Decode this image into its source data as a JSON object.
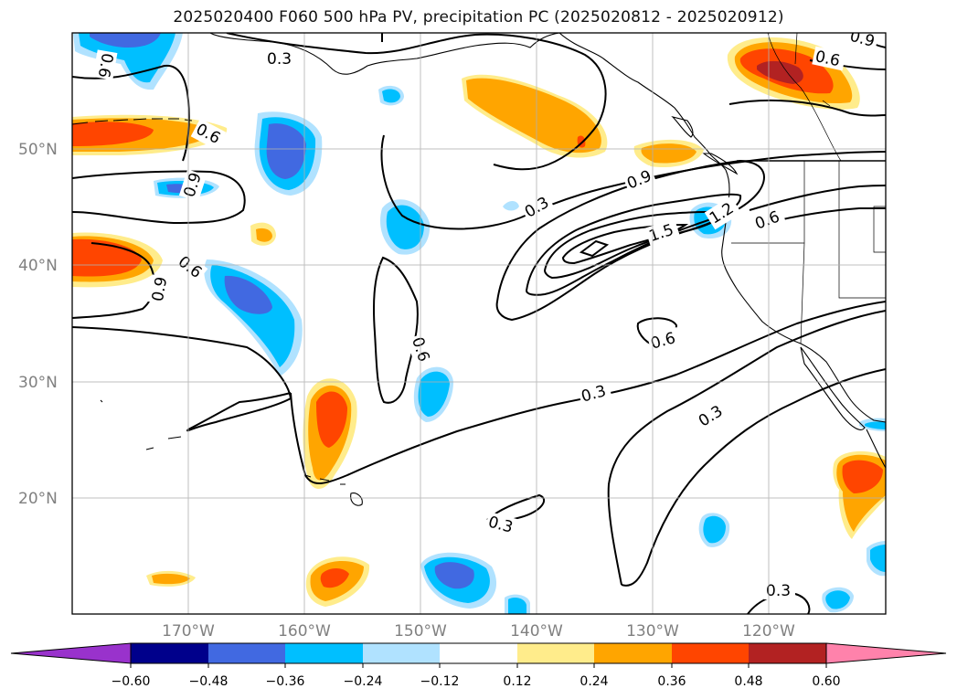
{
  "title": "2025020400 F060 500 hPa PV, precipitation PC (2025020812 - 2025020912)",
  "map": {
    "lat_labels": [
      "50°N",
      "40°N",
      "30°N",
      "20°N"
    ],
    "lon_labels": [
      "170°W",
      "160°W",
      "150°W",
      "140°W",
      "130°W",
      "120°W"
    ],
    "contour_labels": [
      "0.3",
      "0.6",
      "0.9",
      "0.6",
      "0.9",
      "0.6",
      "0.6",
      "0.9",
      "0.3",
      "0.9",
      "1.5",
      "1.2",
      "0.6",
      "0.6",
      "0.6",
      "0.3",
      "0.3",
      "0.3",
      "0.3"
    ],
    "colors": {
      "pos_0_12": "#ffec8b",
      "pos_0_24": "#ffa500",
      "pos_0_36": "#ff4500",
      "pos_0_48": "#b22222",
      "pos_0_60": "#ff82ab",
      "neg_0_12": "#b0e2ff",
      "neg_0_24": "#00bfff",
      "neg_0_36": "#4169e1",
      "neg_0_48": "#00008b",
      "neg_0_60": "#9932cc"
    }
  },
  "colorbar": {
    "ticks": [
      "−0.60",
      "−0.48",
      "−0.36",
      "−0.24",
      "−0.12",
      "0.12",
      "0.24",
      "0.36",
      "0.48",
      "0.60"
    ],
    "colors": [
      "#9932cc",
      "#00008b",
      "#4169e1",
      "#00bfff",
      "#b0e2ff",
      "#ffffff",
      "#ffec8b",
      "#ffa500",
      "#ff4500",
      "#b22222",
      "#ff82ab"
    ]
  }
}
